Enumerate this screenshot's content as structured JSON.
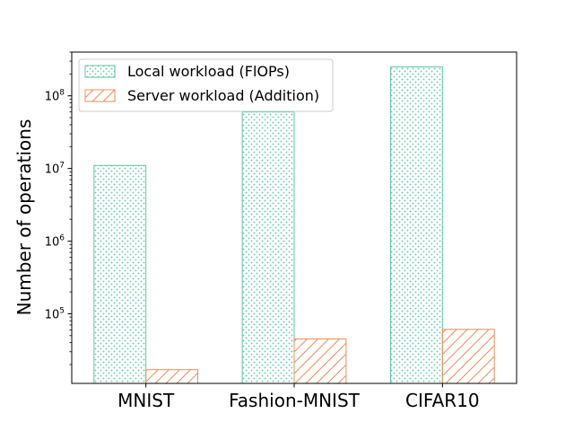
{
  "chart_data": {
    "type": "bar",
    "title": "",
    "xlabel": "",
    "ylabel": "Number of operations",
    "yscale": "log",
    "ylim": [
      11000,
      400000000
    ],
    "categories": [
      "MNIST",
      "Fashion-MNIST",
      "CIFAR10"
    ],
    "series": [
      {
        "name": "Local workload (FlOPs)",
        "values": [
          11000000,
          60000000,
          250000000
        ],
        "color": "#5cc6a0",
        "hatch": "dots"
      },
      {
        "name": "Server workload (Addition)",
        "values": [
          17000,
          45000,
          61000
        ],
        "color": "#f08c5a",
        "hatch": "diagonal"
      }
    ],
    "yticks": [
      {
        "value": 100000,
        "base": "10",
        "exp": "5"
      },
      {
        "value": 1000000,
        "base": "10",
        "exp": "6"
      },
      {
        "value": 10000000,
        "base": "10",
        "exp": "7"
      },
      {
        "value": 100000000,
        "base": "10",
        "exp": "8"
      }
    ],
    "legend_position": "upper-left",
    "grid": false
  }
}
